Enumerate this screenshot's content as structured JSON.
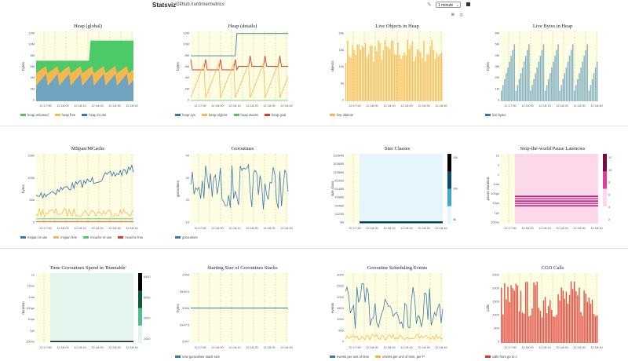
{
  "header": {
    "brand": "Statsviz",
    "nav_links": [
      "Github",
      "/runtime/metrics"
    ],
    "interval": "1 minute",
    "icons": [
      "edit-icon",
      "stop-icon",
      "camera-icon",
      "gear-icon"
    ]
  },
  "colors": {
    "plot_bg": "#fdfde3",
    "green": "#4cca6a",
    "orange": "#f6b84d",
    "blue": "#3a78a8",
    "red": "#e0362f",
    "pink": "#e8489a"
  },
  "panels": [
    {
      "title": "Heap (global)",
      "ylabel": "bytes",
      "yticks": [
        "12M",
        "10M",
        "8M",
        "6M",
        "4M",
        "2M",
        "0"
      ],
      "xticks": [
        "12:17:50",
        "12:18:00",
        "12:18:10",
        "12:18:20",
        "12:18:30",
        "12:18:40"
      ],
      "legend": [
        {
          "label": "heap released",
          "color": "#4cca6a"
        },
        {
          "label": "heap free",
          "color": "#f6b84d"
        },
        {
          "label": "heap in-use",
          "color": "#3a78a8"
        }
      ]
    },
    {
      "title": "Heap (details)",
      "ylabel": "bytes",
      "yticks": [
        "12M",
        "10M",
        "8M",
        "6M",
        "4M",
        "2M",
        "0"
      ],
      "xticks": [
        "12:17:50",
        "12:18:00",
        "12:18:10",
        "12:18:20",
        "12:18:30",
        "12:18:40"
      ],
      "legend": [
        {
          "label": "heap sys",
          "color": "#3a78a8"
        },
        {
          "label": "heap objects",
          "color": "#f6b84d"
        },
        {
          "label": "heap stacks",
          "color": "#4cca6a"
        },
        {
          "label": "heap goal",
          "color": "#e0362f"
        }
      ]
    },
    {
      "title": "Live Objects in Heap",
      "ylabel": "objects",
      "yticks": [
        "20k",
        "15k",
        "10k",
        "5k",
        "0"
      ],
      "xticks": [
        "12:17:50",
        "12:18:00",
        "12:18:10",
        "12:18:20",
        "12:18:30",
        "12:18:40"
      ],
      "legend": [
        {
          "label": "live objects",
          "color": "#f6b84d"
        }
      ]
    },
    {
      "title": "Live Bytes in Heap",
      "ylabel": "bytes",
      "yticks": [
        "6M",
        "5M",
        "4M",
        "3M",
        "2M",
        "1M",
        "0"
      ],
      "xticks": [
        "12:17:50",
        "12:18:00",
        "12:18:10",
        "12:18:20",
        "12:18:30",
        "12:18:40"
      ],
      "legend": [
        {
          "label": "live bytes",
          "color": "#3a78a8"
        }
      ]
    },
    {
      "title": "MSpan/MCache",
      "ylabel": "bytes",
      "yticks": [
        "150k",
        "100k",
        "50k",
        "0"
      ],
      "xticks": [
        "12:17:50",
        "12:18:00",
        "12:18:10",
        "12:18:20",
        "12:18:30",
        "12:18:40"
      ],
      "legend": [
        {
          "label": "mspan in-use",
          "color": "#3a78a8"
        },
        {
          "label": "mspan free",
          "color": "#f6b84d"
        },
        {
          "label": "mcache in-use",
          "color": "#4cca6a"
        },
        {
          "label": "mcache free",
          "color": "#e0362f"
        }
      ]
    },
    {
      "title": "Goroutines",
      "ylabel": "goroutines",
      "yticks": [
        "40",
        "30",
        "20",
        "10"
      ],
      "xticks": [
        "12:17:50",
        "12:18:00",
        "12:18:10",
        "12:18:20",
        "12:18:30",
        "12:18:40"
      ],
      "legend": [
        {
          "label": "goroutines",
          "color": "#3a78a8"
        }
      ]
    },
    {
      "title": "Size Classes",
      "ylabel": "size class",
      "yticks": [
        "19264B",
        "16384B",
        "12288B",
        "8192B",
        "6144B",
        "4096B",
        "2048B",
        "1024B",
        "0B"
      ],
      "xticks": [
        "12:17:50",
        "12:18:00",
        "12:18:10",
        "12:18:20",
        "12:18:30",
        "12:18:40"
      ],
      "colorbar": [
        "15k",
        "10k",
        "5k"
      ],
      "legend": []
    },
    {
      "title": "Stop-the-world Pause Latencies",
      "ylabel": "pause duration",
      "yticks": [
        "1s",
        "3",
        "1",
        "1ms",
        "100µs",
        "10µs",
        "1µs",
        "100ns"
      ],
      "xticks": [
        "12:17:50",
        "12:18:00",
        "12:18:10",
        "12:18:20",
        "12:18:30",
        "12:18:40"
      ],
      "colorbar": [
        "12",
        "10",
        "8",
        "6",
        "4",
        "2"
      ],
      "legend": []
    },
    {
      "title": "Time Goroutines Spend in 'Runnable'",
      "ylabel": "duration",
      "yticks": [
        "1s",
        "10ms",
        "1ms",
        "100µs",
        "10µs",
        "1µs",
        "100ns"
      ],
      "xticks": [
        "12:17:50",
        "12:18:00",
        "12:18:10",
        "12:18:20",
        "12:18:30",
        "12:18:40"
      ],
      "colorbar": [
        "8000",
        "6000",
        "4000",
        "2000"
      ],
      "legend": []
    },
    {
      "title": "Starting Size of Goroutines Stacks",
      "ylabel": "bytes",
      "yticks": [
        "2049",
        "2048.5",
        "2048",
        "2047.5",
        "2047"
      ],
      "xticks": [
        "12:17:50",
        "12:18:00",
        "12:18:10",
        "12:18:20",
        "12:18:30",
        "12:18:40"
      ],
      "legend": [
        {
          "label": "new goroutines stack size",
          "color": "#3a78a8"
        }
      ]
    },
    {
      "title": "Goroutine Scheduling Events",
      "ylabel": "events",
      "yticks": [
        "3000",
        "2500",
        "2000",
        "1500",
        "1000",
        "500",
        "0"
      ],
      "xticks": [
        "12:17:50",
        "12:18:00",
        "12:18:10",
        "12:18:20",
        "12:18:30",
        "12:18:40"
      ],
      "legend": [
        {
          "label": "events per unit of time",
          "color": "#3a78a8"
        },
        {
          "label": "events per unit of time, per P",
          "color": "#f6b84d"
        }
      ]
    },
    {
      "title": "CGO Calls",
      "ylabel": "calls",
      "yticks": [
        "2500",
        "2000",
        "1500",
        "1000",
        "500",
        "0"
      ],
      "xticks": [
        "12:17:50",
        "12:18:00",
        "12:18:10",
        "12:18:20",
        "12:18:30",
        "12:18:40"
      ],
      "legend": [
        {
          "label": "calls from go to c",
          "color": "#e0362f"
        }
      ]
    }
  ]
}
